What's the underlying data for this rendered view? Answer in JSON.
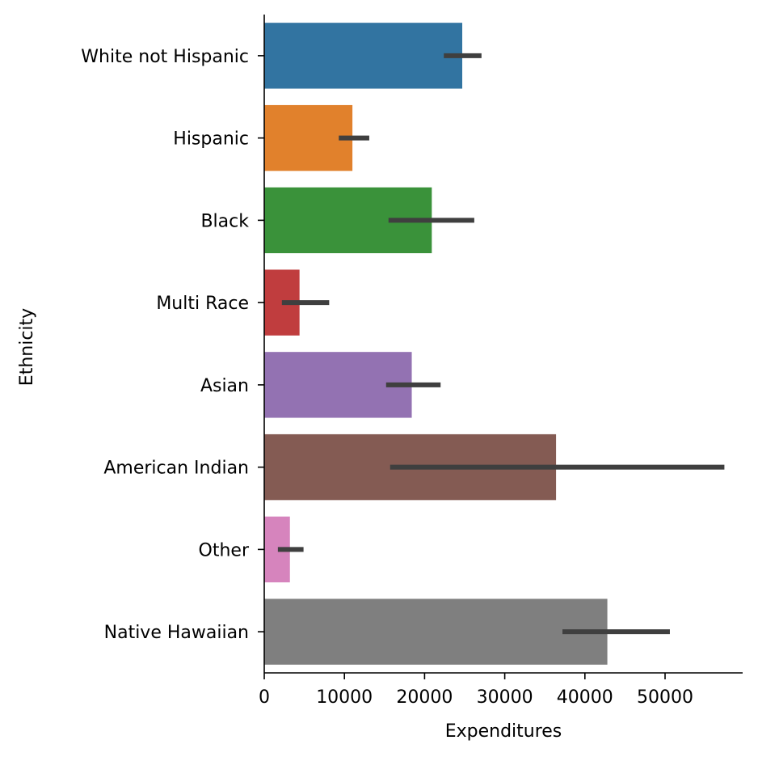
{
  "chart_data": {
    "type": "bar",
    "orientation": "horizontal",
    "xlabel": "Expenditures",
    "ylabel": "Ethnicity",
    "xlim": [
      0,
      60000
    ],
    "xticks": [
      0,
      10000,
      20000,
      30000,
      40000,
      50000
    ],
    "grid": false,
    "categories": [
      "White not Hispanic",
      "Hispanic",
      "Black",
      "Multi Race",
      "Asian",
      "American Indian",
      "Other",
      "Native Hawaiian"
    ],
    "values": [
      24700,
      11000,
      20900,
      4400,
      18400,
      36400,
      3200,
      42800
    ],
    "ci_low": [
      22400,
      9300,
      15500,
      2200,
      15200,
      15700,
      1700,
      37200
    ],
    "ci_high": [
      27100,
      13100,
      26200,
      8100,
      22000,
      57400,
      4900,
      50600
    ],
    "colors": [
      "#3274a1",
      "#e1812c",
      "#3a923a",
      "#c03d3e",
      "#9372b2",
      "#845b53",
      "#d684bd",
      "#7f7f7f"
    ]
  }
}
